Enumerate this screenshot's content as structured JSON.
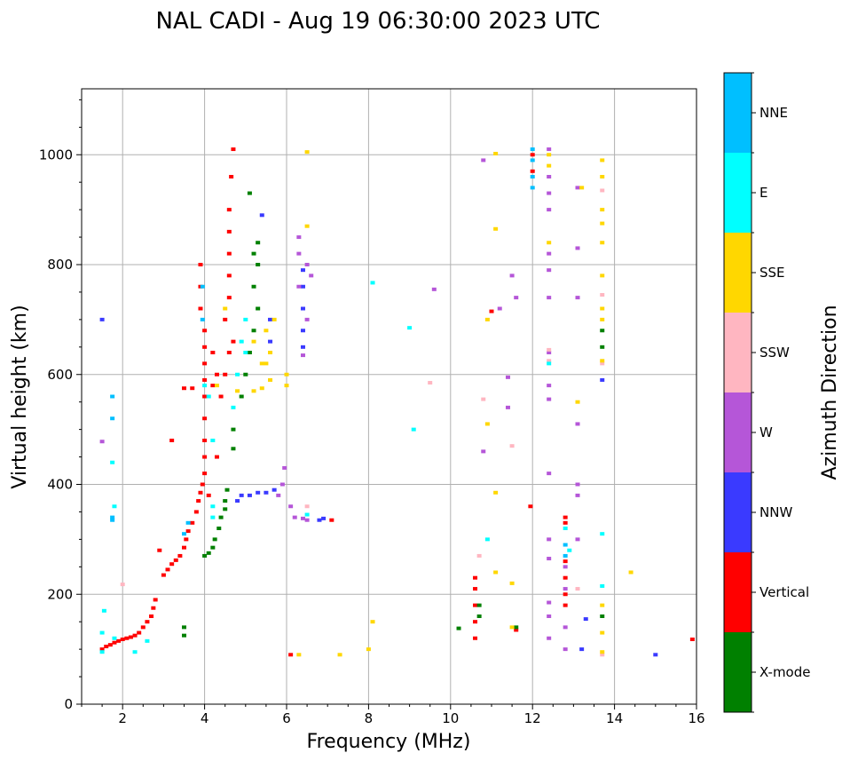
{
  "chart_data": {
    "type": "scatter",
    "title": "NAL CADI - Aug 19 06:30:00 2023 UTC",
    "xlabel": "Frequency (MHz)",
    "ylabel": "Virtual height (km)",
    "xlim": [
      1,
      16
    ],
    "ylim": [
      0,
      1120
    ],
    "xticks": [
      2,
      4,
      6,
      8,
      10,
      12,
      14,
      16
    ],
    "yticks": [
      0,
      200,
      400,
      600,
      800,
      1000
    ],
    "grid": true,
    "colorbar": {
      "title": "Azimuth Direction",
      "categories": [
        "X-mode",
        "Vertical",
        "NNW",
        "W",
        "SSW",
        "SSE",
        "E",
        "NNE"
      ],
      "colors": {
        "X-mode": "#008000",
        "Vertical": "#ff0000",
        "NNW": "#3a3aff",
        "W": "#b556d8",
        "SSW": "#ffb6c1",
        "SSE": "#ffd700",
        "E": "#00ffff",
        "NNE": "#00bfff"
      }
    },
    "series": [
      {
        "name": "Vertical",
        "points": [
          [
            1.5,
            100
          ],
          [
            1.6,
            105
          ],
          [
            1.7,
            108
          ],
          [
            1.8,
            112
          ],
          [
            1.9,
            115
          ],
          [
            2.0,
            118
          ],
          [
            2.1,
            120
          ],
          [
            2.2,
            122
          ],
          [
            2.3,
            125
          ],
          [
            2.4,
            130
          ],
          [
            2.5,
            140
          ],
          [
            2.6,
            150
          ],
          [
            2.7,
            160
          ],
          [
            2.75,
            175
          ],
          [
            2.8,
            190
          ],
          [
            3.0,
            235
          ],
          [
            3.1,
            245
          ],
          [
            3.2,
            255
          ],
          [
            3.3,
            262
          ],
          [
            3.4,
            270
          ],
          [
            3.5,
            285
          ],
          [
            3.55,
            300
          ],
          [
            3.6,
            315
          ],
          [
            3.7,
            330
          ],
          [
            3.8,
            350
          ],
          [
            3.85,
            370
          ],
          [
            3.9,
            385
          ],
          [
            3.95,
            400
          ],
          [
            4.0,
            420
          ],
          [
            4.0,
            450
          ],
          [
            4.0,
            480
          ],
          [
            4.0,
            520
          ],
          [
            4.0,
            560
          ],
          [
            4.0,
            590
          ],
          [
            4.0,
            620
          ],
          [
            4.0,
            650
          ],
          [
            4.0,
            680
          ],
          [
            3.9,
            720
          ],
          [
            3.9,
            760
          ],
          [
            3.9,
            800
          ],
          [
            4.2,
            580
          ],
          [
            4.3,
            600
          ],
          [
            4.2,
            640
          ],
          [
            4.4,
            560
          ],
          [
            4.5,
            600
          ],
          [
            4.6,
            640
          ],
          [
            4.7,
            660
          ],
          [
            4.5,
            700
          ],
          [
            4.6,
            740
          ],
          [
            4.6,
            780
          ],
          [
            4.6,
            820
          ],
          [
            4.6,
            860
          ],
          [
            4.6,
            900
          ],
          [
            4.65,
            960
          ],
          [
            4.7,
            1010
          ],
          [
            4.3,
            450
          ],
          [
            4.1,
            380
          ],
          [
            3.7,
            575
          ],
          [
            3.5,
            575
          ],
          [
            3.2,
            480
          ],
          [
            2.9,
            280
          ],
          [
            6.1,
            90
          ],
          [
            7.1,
            335
          ],
          [
            10.6,
            230
          ],
          [
            10.6,
            210
          ],
          [
            10.6,
            180
          ],
          [
            10.6,
            150
          ],
          [
            10.6,
            120
          ],
          [
            11.0,
            715
          ],
          [
            11.6,
            135
          ],
          [
            11.95,
            360
          ],
          [
            12.0,
            1000
          ],
          [
            12.0,
            970
          ],
          [
            12.8,
            340
          ],
          [
            12.8,
            330
          ],
          [
            12.8,
            260
          ],
          [
            12.8,
            230
          ],
          [
            12.8,
            200
          ],
          [
            12.8,
            180
          ],
          [
            15.9,
            118
          ]
        ]
      },
      {
        "name": "X-mode",
        "points": [
          [
            3.5,
            125
          ],
          [
            3.5,
            140
          ],
          [
            4.0,
            270
          ],
          [
            4.1,
            275
          ],
          [
            4.2,
            285
          ],
          [
            4.25,
            300
          ],
          [
            4.35,
            320
          ],
          [
            4.4,
            340
          ],
          [
            4.5,
            355
          ],
          [
            4.5,
            370
          ],
          [
            4.55,
            390
          ],
          [
            4.7,
            465
          ],
          [
            4.7,
            500
          ],
          [
            4.9,
            560
          ],
          [
            5.0,
            600
          ],
          [
            5.1,
            640
          ],
          [
            5.2,
            680
          ],
          [
            5.3,
            720
          ],
          [
            5.2,
            760
          ],
          [
            5.3,
            800
          ],
          [
            5.2,
            820
          ],
          [
            5.3,
            840
          ],
          [
            5.1,
            930
          ],
          [
            10.2,
            138
          ],
          [
            10.7,
            160
          ],
          [
            10.7,
            180
          ],
          [
            13.7,
            160
          ],
          [
            13.7,
            650
          ],
          [
            13.7,
            680
          ],
          [
            11.6,
            140
          ]
        ]
      },
      {
        "name": "NNW",
        "points": [
          [
            1.5,
            700
          ],
          [
            4.8,
            370
          ],
          [
            4.9,
            380
          ],
          [
            5.1,
            380
          ],
          [
            5.3,
            385
          ],
          [
            5.5,
            385
          ],
          [
            5.7,
            390
          ],
          [
            5.6,
            660
          ],
          [
            5.6,
            700
          ],
          [
            6.4,
            650
          ],
          [
            6.4,
            680
          ],
          [
            6.4,
            720
          ],
          [
            6.4,
            760
          ],
          [
            6.4,
            790
          ],
          [
            5.4,
            890
          ],
          [
            6.8,
            335
          ],
          [
            6.9,
            338
          ],
          [
            13.7,
            590
          ],
          [
            15.0,
            90
          ],
          [
            13.3,
            155
          ],
          [
            13.2,
            100
          ]
        ]
      },
      {
        "name": "W",
        "points": [
          [
            1.5,
            478
          ],
          [
            5.9,
            400
          ],
          [
            5.95,
            430
          ],
          [
            5.8,
            380
          ],
          [
            6.1,
            360
          ],
          [
            6.2,
            340
          ],
          [
            6.4,
            338
          ],
          [
            6.5,
            335
          ],
          [
            6.3,
            850
          ],
          [
            6.3,
            820
          ],
          [
            6.5,
            800
          ],
          [
            6.3,
            760
          ],
          [
            6.6,
            780
          ],
          [
            6.5,
            700
          ],
          [
            6.4,
            635
          ],
          [
            10.8,
            990
          ],
          [
            11.5,
            780
          ],
          [
            11.6,
            740
          ],
          [
            12.4,
            1010
          ],
          [
            12.4,
            960
          ],
          [
            12.4,
            930
          ],
          [
            12.4,
            900
          ],
          [
            12.4,
            820
          ],
          [
            12.4,
            790
          ],
          [
            12.4,
            740
          ],
          [
            12.4,
            640
          ],
          [
            12.4,
            580
          ],
          [
            12.4,
            555
          ],
          [
            12.4,
            420
          ],
          [
            12.4,
            300
          ],
          [
            12.4,
            265
          ],
          [
            12.4,
            185
          ],
          [
            12.4,
            160
          ],
          [
            12.4,
            120
          ],
          [
            12.8,
            250
          ],
          [
            12.8,
            210
          ],
          [
            12.8,
            140
          ],
          [
            12.8,
            100
          ],
          [
            13.1,
            940
          ],
          [
            13.1,
            830
          ],
          [
            13.1,
            740
          ],
          [
            13.1,
            510
          ],
          [
            13.1,
            400
          ],
          [
            13.1,
            380
          ],
          [
            13.1,
            300
          ],
          [
            11.2,
            720
          ],
          [
            11.4,
            595
          ],
          [
            11.4,
            540
          ],
          [
            10.8,
            460
          ],
          [
            9.6,
            755
          ]
        ]
      },
      {
        "name": "SSW",
        "points": [
          [
            2.0,
            218
          ],
          [
            6.5,
            360
          ],
          [
            10.7,
            270
          ],
          [
            10.8,
            555
          ],
          [
            11.5,
            470
          ],
          [
            12.4,
            645
          ],
          [
            12.4,
            625
          ],
          [
            13.7,
            935
          ],
          [
            13.7,
            745
          ],
          [
            13.7,
            620
          ],
          [
            13.7,
            90
          ],
          [
            9.5,
            585
          ],
          [
            13.1,
            210
          ]
        ]
      },
      {
        "name": "SSE",
        "points": [
          [
            5.2,
            570
          ],
          [
            5.4,
            575
          ],
          [
            5.6,
            590
          ],
          [
            5.4,
            620
          ],
          [
            5.6,
            640
          ],
          [
            5.2,
            660
          ],
          [
            5.5,
            680
          ],
          [
            5.7,
            700
          ],
          [
            5.5,
            620
          ],
          [
            4.5,
            720
          ],
          [
            4.3,
            580
          ],
          [
            4.8,
            570
          ],
          [
            6.5,
            870
          ],
          [
            6.5,
            1005
          ],
          [
            6.0,
            600
          ],
          [
            6.0,
            580
          ],
          [
            6.3,
            90
          ],
          [
            7.3,
            90
          ],
          [
            11.1,
            1002
          ],
          [
            11.1,
            865
          ],
          [
            11.1,
            385
          ],
          [
            11.1,
            240
          ],
          [
            10.9,
            700
          ],
          [
            10.9,
            510
          ],
          [
            11.5,
            140
          ],
          [
            11.5,
            220
          ],
          [
            12.4,
            1000
          ],
          [
            12.4,
            980
          ],
          [
            12.4,
            840
          ],
          [
            13.1,
            550
          ],
          [
            13.7,
            990
          ],
          [
            13.7,
            960
          ],
          [
            13.7,
            900
          ],
          [
            13.7,
            875
          ],
          [
            13.7,
            840
          ],
          [
            13.7,
            780
          ],
          [
            13.7,
            720
          ],
          [
            13.7,
            700
          ],
          [
            13.7,
            625
          ],
          [
            13.7,
            180
          ],
          [
            13.7,
            130
          ],
          [
            13.7,
            95
          ],
          [
            14.4,
            240
          ],
          [
            8.0,
            100
          ],
          [
            8.1,
            150
          ],
          [
            13.2,
            940
          ]
        ]
      },
      {
        "name": "E",
        "points": [
          [
            1.5,
            95
          ],
          [
            1.5,
            130
          ],
          [
            1.55,
            170
          ],
          [
            1.8,
            120
          ],
          [
            2.3,
            95
          ],
          [
            2.6,
            115
          ],
          [
            4.0,
            580
          ],
          [
            4.1,
            560
          ],
          [
            4.2,
            480
          ],
          [
            4.2,
            360
          ],
          [
            4.2,
            340
          ],
          [
            4.7,
            540
          ],
          [
            4.8,
            600
          ],
          [
            4.9,
            660
          ],
          [
            5.0,
            700
          ],
          [
            5.0,
            640
          ],
          [
            6.5,
            345
          ],
          [
            8.1,
            767
          ],
          [
            9.1,
            500
          ],
          [
            9.0,
            685
          ],
          [
            10.9,
            300
          ],
          [
            12.4,
            620
          ],
          [
            13.7,
            310
          ],
          [
            13.7,
            215
          ],
          [
            12.8,
            320
          ],
          [
            12.9,
            280
          ],
          [
            1.75,
            440
          ],
          [
            1.8,
            360
          ]
        ]
      },
      {
        "name": "NNE",
        "points": [
          [
            1.75,
            520
          ],
          [
            1.75,
            560
          ],
          [
            1.75,
            340
          ],
          [
            1.75,
            335
          ],
          [
            3.5,
            310
          ],
          [
            3.6,
            330
          ],
          [
            3.95,
            700
          ],
          [
            3.95,
            760
          ],
          [
            12.0,
            1010
          ],
          [
            12.0,
            990
          ],
          [
            12.0,
            960
          ],
          [
            12.0,
            940
          ],
          [
            12.8,
            290
          ],
          [
            12.8,
            270
          ]
        ]
      }
    ]
  }
}
